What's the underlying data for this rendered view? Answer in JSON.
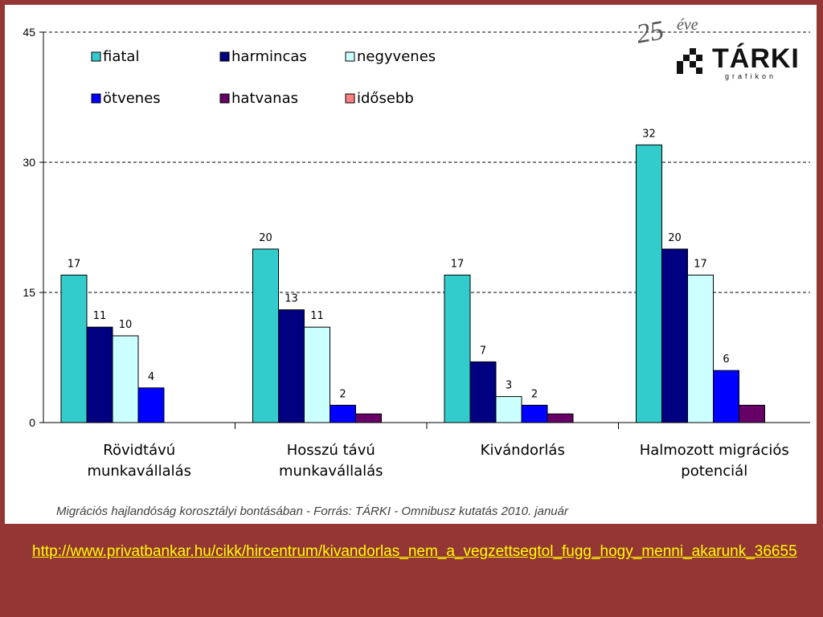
{
  "chart_data": {
    "type": "bar",
    "categories": [
      [
        "Rövidtávú",
        "munkavállalás"
      ],
      [
        "Hosszú távú",
        "munkavállalás"
      ],
      [
        "Kivándorlás"
      ],
      [
        "Halmozott migrációs",
        "potenciál"
      ]
    ],
    "series": [
      {
        "name": "fiatal",
        "color": "#33CCCC",
        "values": [
          17,
          20,
          17,
          32
        ]
      },
      {
        "name": "harmincas",
        "color": "#000080",
        "values": [
          11,
          13,
          7,
          20
        ]
      },
      {
        "name": "negyvenes",
        "color": "#CCFFFF",
        "values": [
          10,
          11,
          3,
          17
        ]
      },
      {
        "name": "ötvenes",
        "color": "#0000FF",
        "values": [
          4,
          2,
          2,
          6
        ]
      },
      {
        "name": "hatvanas",
        "color": "#660066",
        "values": [
          0,
          1,
          1,
          2
        ]
      },
      {
        "name": "idősebb",
        "color": "#FF8080",
        "values": [
          0,
          0,
          0,
          0
        ]
      }
    ],
    "data_labels_shown_for": [
      "fiatal",
      "harmincas",
      "negyvenes",
      "ötvenes"
    ],
    "ylim": [
      0,
      45
    ],
    "yticks": [
      0,
      15,
      30,
      45
    ],
    "grid": "dashed horizontal",
    "legend_position": "top-left",
    "caption": "Migrációs hajlandóság korosztályi bontásában - Forrás: TÁRKI - Omnibusz kutatás 2010. január"
  },
  "logo": {
    "year": "25",
    "year_word": "éve",
    "name": "TÁRKI",
    "subtitle": "grafikon"
  },
  "source_link": "http://www.privatbankar.hu/cikk/hircentrum/kivandorlas_nem_a_vegzettsegtol_fugg_hogy_menni_akarunk_36655",
  "colors": {
    "background": "#943634",
    "link": "#FFFF00"
  }
}
